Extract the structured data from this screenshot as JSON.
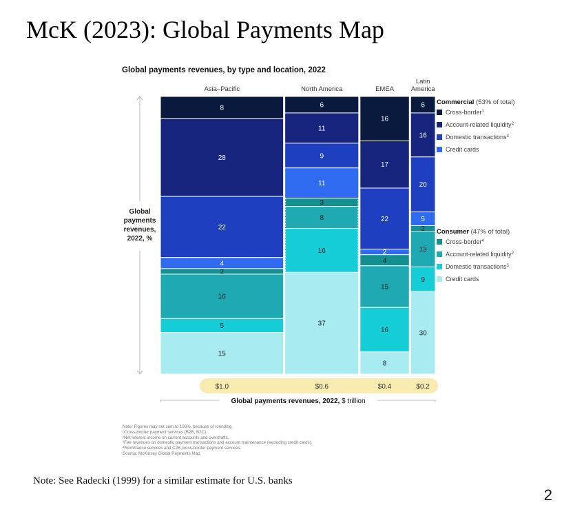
{
  "slide": {
    "title": "McK (2023): Global Payments Map",
    "footer_note": "Note: See Radecki (1999) for a similar estimate for U.S. banks",
    "page_number": "2"
  },
  "chart_data": {
    "type": "marimekko",
    "title": "Global payments revenues, by type and location, 2022",
    "ylabel": "Global payments revenues, 2022, %",
    "xlabel": "Global payments revenues, 2022, $ trillion",
    "xlabel_bold": "Global payments revenues, 2022,",
    "xlabel_unit": "$ trillion",
    "ylabel_lines": [
      "Global",
      "payments",
      "revenues,",
      "2022, %"
    ],
    "highlight_color": "#f6e9a6",
    "columns": [
      {
        "name": "Asia–Pacific",
        "name_lines": [
          "Asia–Pacific"
        ],
        "total_trillion": 1.0,
        "total_label": "$1.0",
        "values": [
          8,
          28,
          22,
          4,
          2,
          16,
          5,
          15
        ]
      },
      {
        "name": "North America",
        "name_lines": [
          "North America"
        ],
        "total_trillion": 0.6,
        "total_label": "$0.6",
        "values": [
          6,
          11,
          9,
          11,
          3,
          8,
          16,
          37
        ]
      },
      {
        "name": "EMEA",
        "name_lines": [
          "EMEA"
        ],
        "total_trillion": 0.4,
        "total_label": "$0.4",
        "values": [
          16,
          17,
          22,
          2,
          4,
          15,
          16,
          8
        ]
      },
      {
        "name": "Latin America",
        "name_lines": [
          "Latin",
          "America"
        ],
        "total_trillion": 0.2,
        "total_label": "$0.2",
        "values": [
          6,
          16,
          20,
          5,
          2,
          13,
          9,
          30
        ]
      }
    ],
    "segments": [
      {
        "group": "Commercial",
        "name": "Cross-border",
        "sup": "1",
        "color": "#0a1a3f",
        "label_color": "#ffffff"
      },
      {
        "group": "Commercial",
        "name": "Account-related liquidity",
        "sup": "2",
        "color": "#17247d",
        "label_color": "#ffffff"
      },
      {
        "group": "Commercial",
        "name": "Domestic transactions",
        "sup": "3",
        "color": "#1e3fc0",
        "label_color": "#ffffff"
      },
      {
        "group": "Commercial",
        "name": "Credit cards",
        "sup": "",
        "color": "#2f6bf0",
        "label_color": "#ffffff"
      },
      {
        "group": "Consumer",
        "name": "Cross-border",
        "sup": "4",
        "color": "#138f8f",
        "label_color": "#1a1a1a"
      },
      {
        "group": "Consumer",
        "name": "Account-related liquidity",
        "sup": "2",
        "color": "#1fa9b3",
        "label_color": "#1a1a1a"
      },
      {
        "group": "Consumer",
        "name": "Domestic transactions",
        "sup": "3",
        "color": "#15ced8",
        "label_color": "#1a1a1a"
      },
      {
        "group": "Consumer",
        "name": "Credit cards",
        "sup": "",
        "color": "#a8ecf2",
        "label_color": "#1a1a1a"
      }
    ],
    "legend": [
      {
        "group": "Commercial",
        "title": "Commercial",
        "share": "(53% of total)"
      },
      {
        "group": "Consumer",
        "title": "Consumer",
        "share": "(47% of total)"
      }
    ]
  },
  "notes": [
    "Note: Figures may not sum to 100%, because of rounding.",
    "¹Cross-border payment services (B2B, B2C).",
    "²Net interest income on current accounts and overdrafts.",
    "³Fee revenues on domestic payment transactions and account maintenance (excluding credit cards).",
    "⁴Remittance services and C2B cross-border payment services.",
    "Source: McKinsey Global Payments Map"
  ]
}
